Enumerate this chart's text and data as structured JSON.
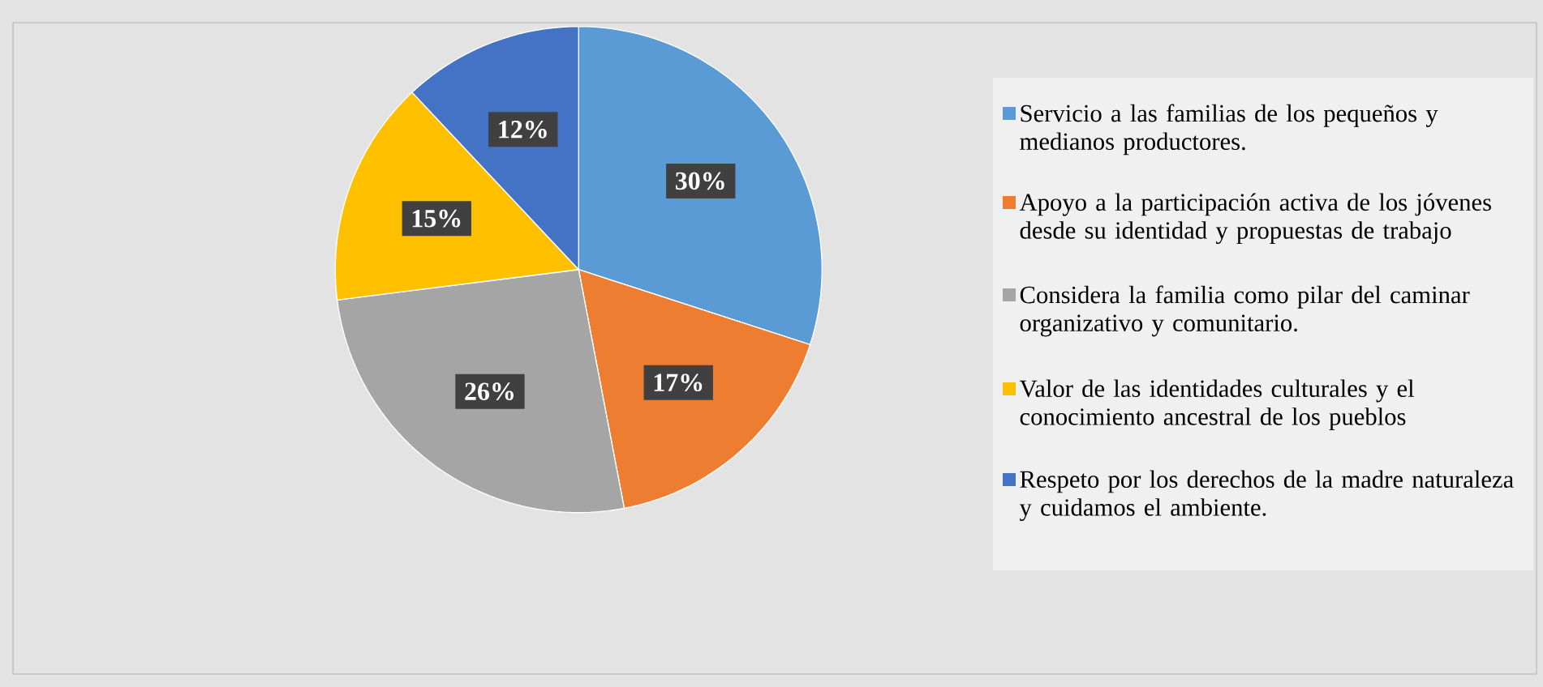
{
  "chart_data": {
    "type": "pie",
    "categories": [
      "Servicio a las familias de los pequeños y medianos productores.",
      "Apoyo a la participación activa de los jóvenes desde su identidad y propuestas de trabajo",
      "Considera la familia como pilar del caminar organizativo y comunitario.",
      "Valor de las identidades culturales y el conocimiento ancestral de los pueblos",
      "Respeto por los derechos de la madre naturaleza y cuidamos el ambiente."
    ],
    "values": [
      30,
      17,
      26,
      15,
      12
    ],
    "value_labels": [
      "30%",
      "17%",
      "26%",
      "15%",
      "12%"
    ],
    "colors": [
      "#5b9bd5",
      "#ed7d31",
      "#a5a5a5",
      "#ffc000",
      "#4472c4"
    ],
    "legend": "right"
  }
}
